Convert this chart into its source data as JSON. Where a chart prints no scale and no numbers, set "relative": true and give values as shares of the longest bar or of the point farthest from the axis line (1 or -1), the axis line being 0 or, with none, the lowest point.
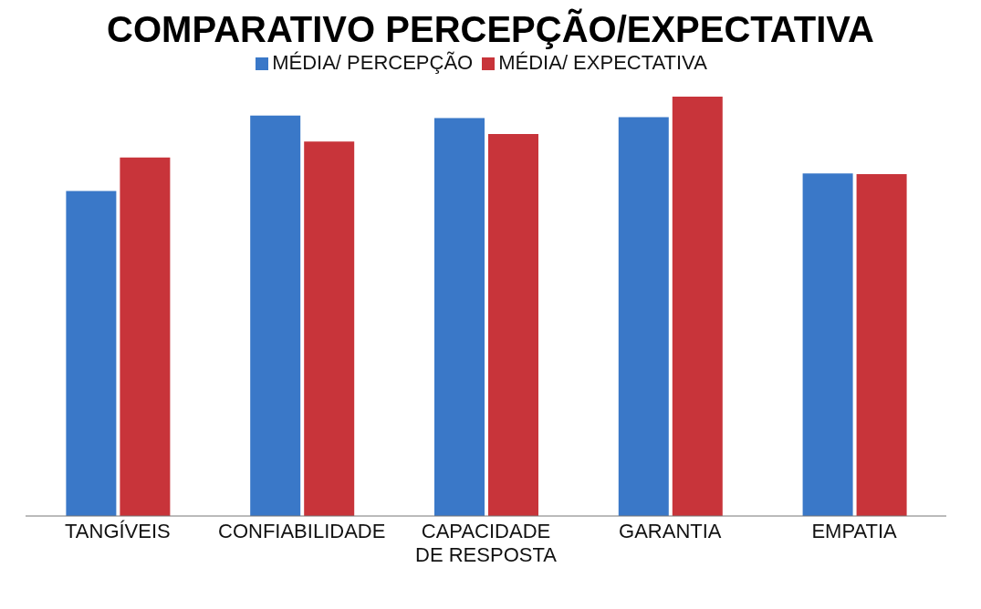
{
  "chart_data": {
    "type": "bar",
    "title": "COMPARATIVO  PERCEPÇÃO/EXPECTATIVA",
    "relative": true,
    "legend": "top",
    "grid": false,
    "categories": [
      "TANGÍVEIS",
      "CONFIABILIDADE",
      "CAPACIDADE DE RESPOSTA",
      "GARANTIA",
      "EMPATIA"
    ],
    "series": [
      {
        "name": "MÉDIA/ PERCEPÇÃO",
        "color": "#3a78c8",
        "values": [
          0.775,
          0.955,
          0.949,
          0.951,
          0.817
        ]
      },
      {
        "name": "MÉDIA/ EXPECTATIVA",
        "color": "#c8343a",
        "values": [
          0.855,
          0.893,
          0.911,
          1,
          0.815
        ]
      }
    ]
  }
}
